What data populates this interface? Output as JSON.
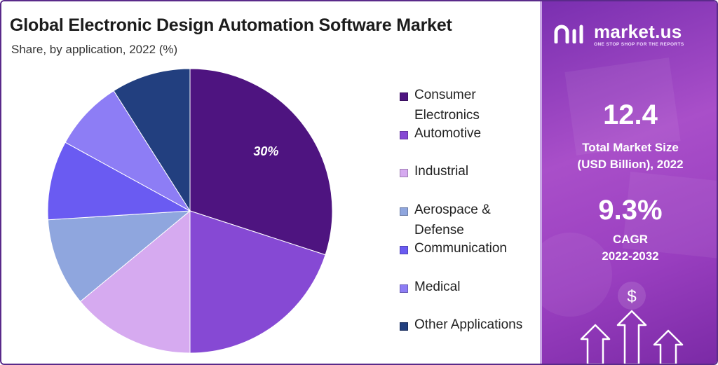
{
  "chart_data": {
    "type": "pie",
    "title": "Global Electronic Design Automation Software Market",
    "subtitle": "Share, by application, 2022 (%)",
    "slices": [
      {
        "label": "Consumer Electronics",
        "value": 30,
        "color": "#4e1480",
        "data_label": "30%"
      },
      {
        "label": "Automotive",
        "value": 20,
        "color": "#8649d4",
        "data_label": ""
      },
      {
        "label": "Industrial",
        "value": 14,
        "color": "#d6aaf0",
        "data_label": ""
      },
      {
        "label": "Aerospace & Defense",
        "value": 10,
        "color": "#8fa6de",
        "data_label": ""
      },
      {
        "label": "Communication",
        "value": 9,
        "color": "#6a5bf2",
        "data_label": ""
      },
      {
        "label": "Medical",
        "value": 8,
        "color": "#8d7df5",
        "data_label": ""
      },
      {
        "label": "Other Applications",
        "value": 9,
        "color": "#223f7f",
        "data_label": ""
      }
    ],
    "legend_position": "right"
  },
  "brand": {
    "name": "market.us",
    "tagline": "ONE STOP SHOP FOR THE REPORTS"
  },
  "stats": {
    "market_size_value": "12.4",
    "market_size_label_line1": "Total Market Size",
    "market_size_label_line2": "(USD Billion), 2022",
    "cagr_value": "9.3%",
    "cagr_label_line1": "CAGR",
    "cagr_label_line2": "2022-2032",
    "currency_symbol": "$"
  },
  "icons": {
    "logo": "market-us-logo-icon",
    "growth": "growth-arrows-icon"
  }
}
